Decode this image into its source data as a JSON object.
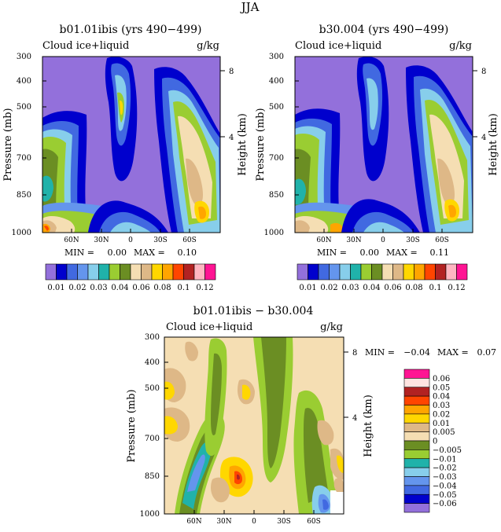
{
  "figure": {
    "title": "JJA"
  },
  "colors": {
    "top_scale": [
      "#9370db",
      "#0000cd",
      "#4169e1",
      "#6495ed",
      "#87ceeb",
      "#20b2aa",
      "#9acd32",
      "#6b8e23",
      "#f5deb3",
      "#deb887",
      "#ffd700",
      "#ffa500",
      "#ff4500",
      "#b22222",
      "#ffb6c1",
      "#ff1493"
    ],
    "bottom_scale": [
      "#9370db",
      "#0000cd",
      "#4169e1",
      "#6495ed",
      "#87ceeb",
      "#20b2aa",
      "#9acd32",
      "#6b8e23",
      "#f5deb3",
      "#deb887",
      "#ffd700",
      "#ffa500",
      "#ff4500",
      "#b22222",
      "#ffe4e1",
      "#ff1493"
    ]
  },
  "chart_data": [
    {
      "type": "heatmap",
      "title": "b01.01ibis (yrs 490−499)",
      "variable": "Cloud ice+liquid",
      "units": "g/kg",
      "ylabel": "Pressure (mb)",
      "ylabel_right": "Height (km)",
      "y_ticks": [
        "300",
        "400",
        "500",
        "700",
        "850",
        "1000"
      ],
      "y_right_ticks": [
        "8",
        "4"
      ],
      "x_ticks": [
        "60N",
        "30N",
        "0",
        "30S",
        "60S"
      ],
      "min_label": "MIN =",
      "min_value": "0.00",
      "max_label": "MAX =",
      "max_value": "0.10",
      "colorbar_labels": [
        "0.01",
        "0.02",
        "0.03",
        "0.04",
        "0.06",
        "0.08",
        "0.1",
        "0.12"
      ]
    },
    {
      "type": "heatmap",
      "title": "b30.004 (yrs 490−499)",
      "variable": "Cloud ice+liquid",
      "units": "g/kg",
      "ylabel": "Pressure (mb)",
      "ylabel_right": "Height (km)",
      "y_ticks": [
        "300",
        "400",
        "500",
        "700",
        "850",
        "1000"
      ],
      "y_right_ticks": [
        "8",
        "4"
      ],
      "x_ticks": [
        "60N",
        "30N",
        "0",
        "30S",
        "60S"
      ],
      "min_label": "MIN =",
      "min_value": "0.00",
      "max_label": "MAX =",
      "max_value": "0.11",
      "colorbar_labels": [
        "0.01",
        "0.02",
        "0.03",
        "0.04",
        "0.06",
        "0.08",
        "0.1",
        "0.12"
      ]
    },
    {
      "type": "heatmap",
      "title": "b01.01ibis − b30.004",
      "variable": "Cloud ice+liquid",
      "units": "g/kg",
      "ylabel": "Pressure (mb)",
      "ylabel_right": "Height (km)",
      "y_ticks": [
        "300",
        "400",
        "500",
        "700",
        "850",
        "1000"
      ],
      "y_right_ticks": [
        "8",
        "4"
      ],
      "x_ticks": [
        "60N",
        "30N",
        "0",
        "30S",
        "60S"
      ],
      "min_label": "MIN =",
      "min_value": "−0.04",
      "max_label": "MAX =",
      "max_value": "0.07",
      "colorbar_labels": [
        "0.06",
        "0.05",
        "0.04",
        "0.03",
        "0.02",
        "0.01",
        "0.005",
        "0",
        "−0.005",
        "−0.01",
        "−0.02",
        "−0.03",
        "−0.04",
        "−0.05",
        "−0.06"
      ]
    }
  ]
}
